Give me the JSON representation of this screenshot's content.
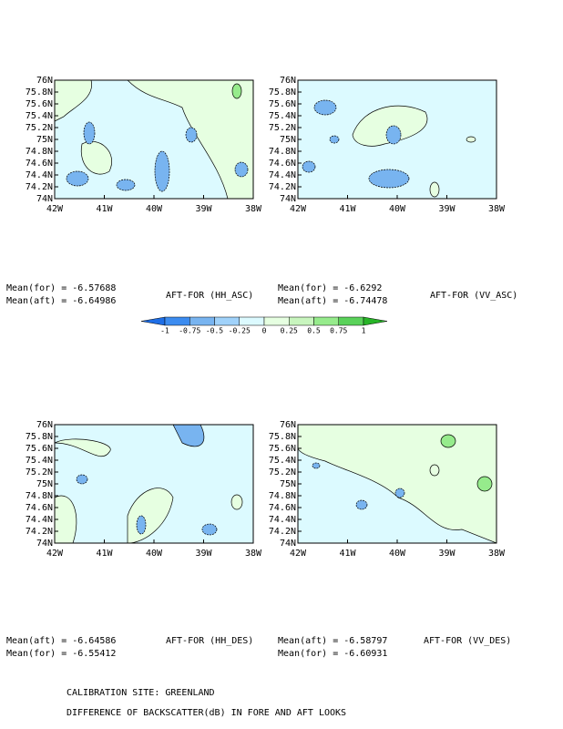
{
  "axes": {
    "yticks": [
      "76N",
      "75.8N",
      "75.6N",
      "75.4N",
      "75.2N",
      "75N",
      "74.8N",
      "74.6N",
      "74.4N",
      "74.2N",
      "74N"
    ],
    "xticks": [
      "42W",
      "41W",
      "40W",
      "39W",
      "38W"
    ]
  },
  "panels": [
    {
      "stats": [
        "Mean(for) = -6.57688",
        "Mean(aft) = -6.64986"
      ],
      "title": "AFT-FOR (HH_ASC)"
    },
    {
      "stats": [
        "Mean(for) = -6.6292",
        "Mean(aft) = -6.74478"
      ],
      "title": "AFT-FOR (VV_ASC)"
    },
    {
      "stats": [
        "Mean(aft) = -6.64586",
        "Mean(for) = -6.55412"
      ],
      "title": "AFT-FOR (HH_DES)"
    },
    {
      "stats": [
        "Mean(aft) = -6.58797",
        "Mean(for) = -6.60931"
      ],
      "title": "AFT-FOR (VV_DES)"
    }
  ],
  "colorbar": {
    "labels": [
      "-1",
      "-0.75",
      "-0.5",
      "-0.25",
      "0",
      "0.25",
      "0.5",
      "0.75",
      "1"
    ],
    "colors": [
      "#1e6ee6",
      "#3c8cf0",
      "#78b4f0",
      "#a0d2fa",
      "#dcfaff",
      "#e6ffe1",
      "#c8f5be",
      "#96eb8c",
      "#5ad25a",
      "#28b428"
    ]
  },
  "footer": [
    "CALIBRATION SITE: GREENLAND",
    "DIFFERENCE OF BACKSCATTER(dB) IN FORE AND AFT LOOKS"
  ]
}
